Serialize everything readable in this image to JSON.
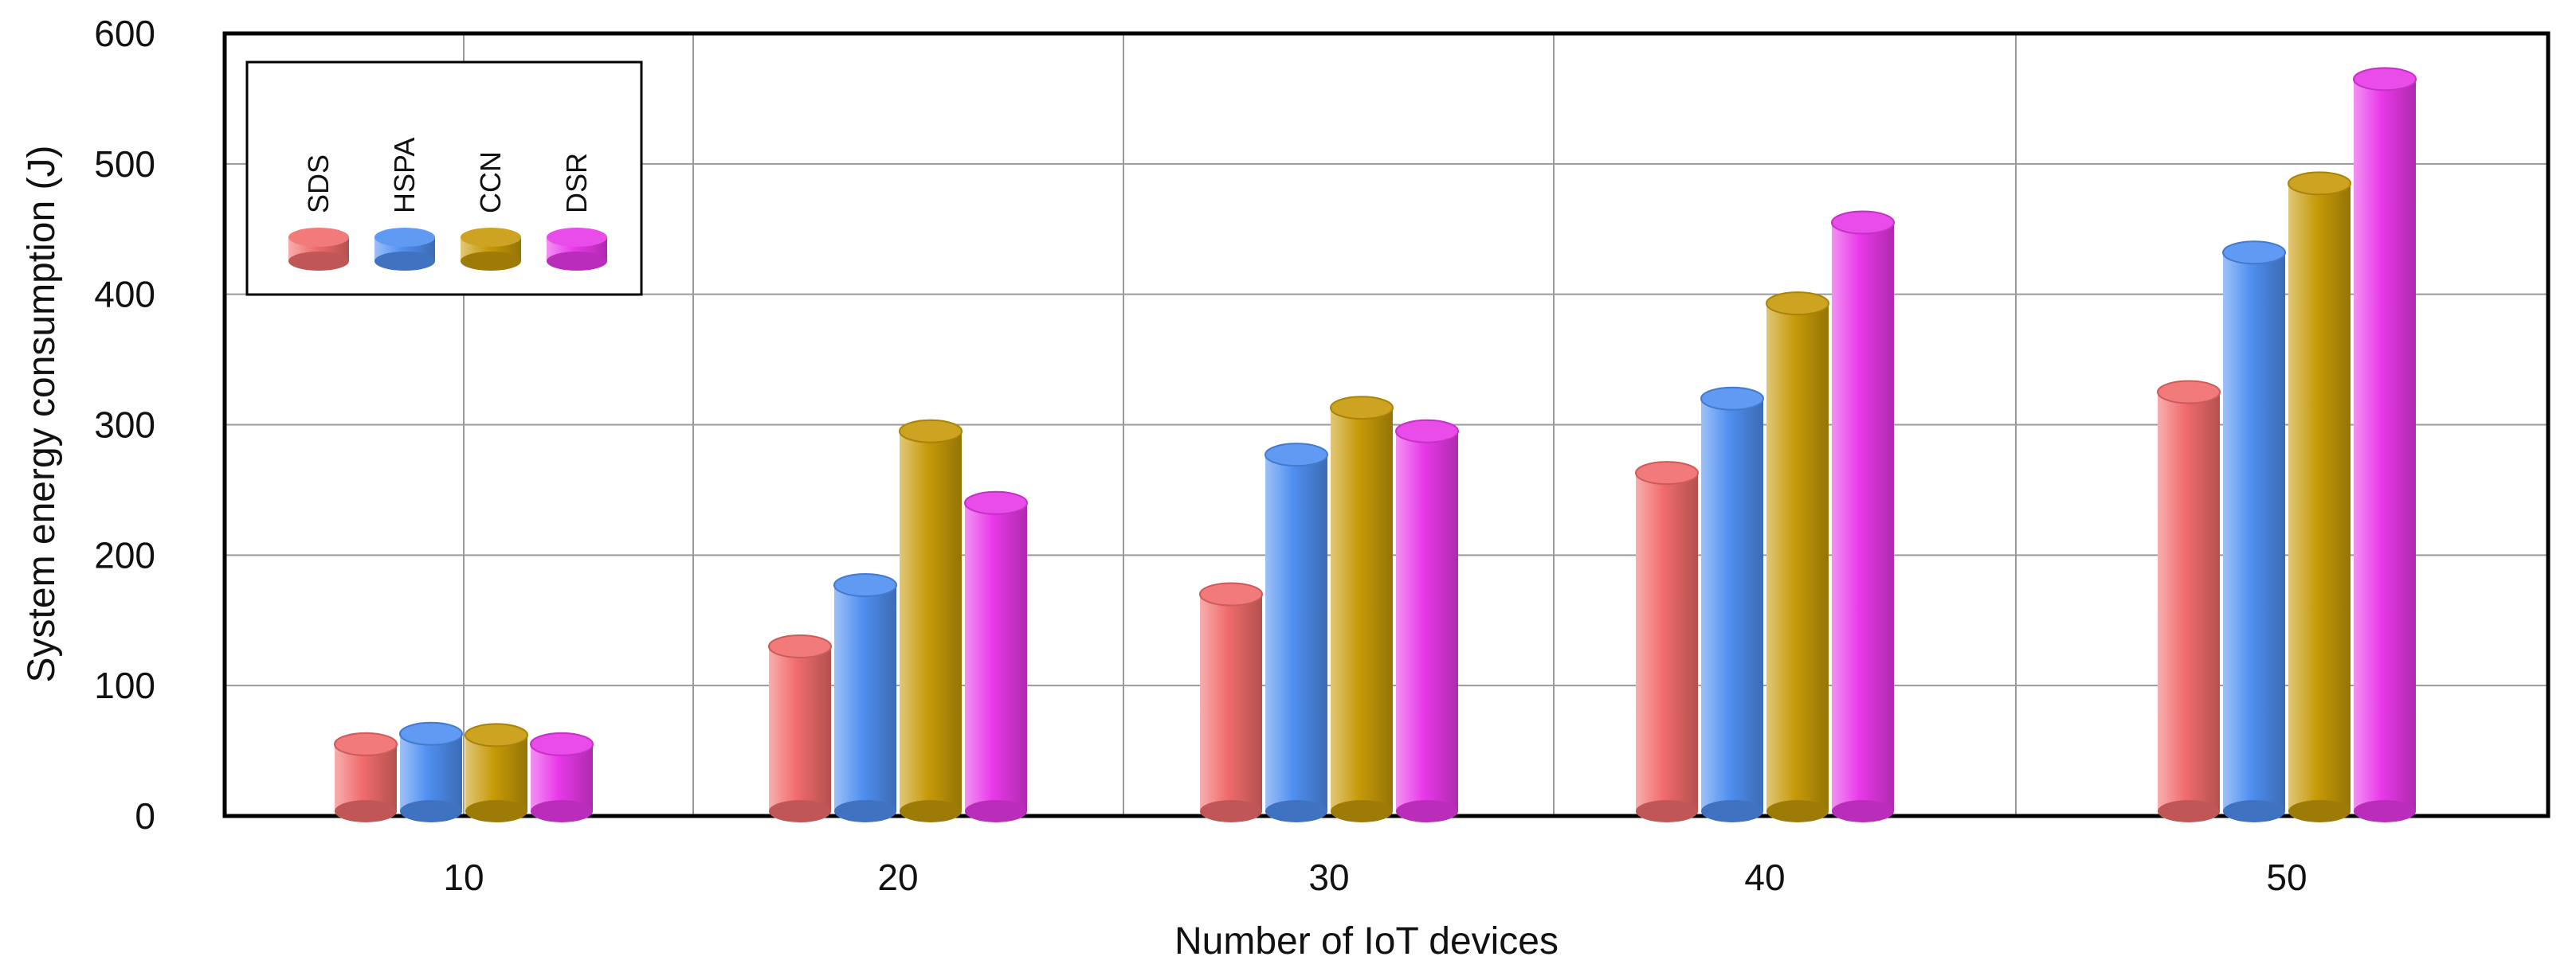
{
  "chart_data": {
    "type": "bar",
    "title": "",
    "xlabel": "Number of IoT devices",
    "ylabel": "System energy consumption (J)",
    "categories": [
      "10",
      "20",
      "30",
      "40",
      "50"
    ],
    "yticks": [
      "0",
      "100",
      "200",
      "300",
      "400",
      "500",
      "600"
    ],
    "ylim": [
      0,
      600
    ],
    "grid": true,
    "legend_position": "top-left",
    "series": [
      {
        "name": "SDS",
        "color": "#f06b6b",
        "values": [
          55,
          130,
          170,
          263,
          325
        ]
      },
      {
        "name": "HSPA",
        "color": "#4f8ff0",
        "values": [
          63,
          177,
          277,
          320,
          432
        ]
      },
      {
        "name": "CCN",
        "color": "#c69a08",
        "values": [
          62,
          295,
          313,
          393,
          485
        ]
      },
      {
        "name": "DSR",
        "color": "#e838e8",
        "values": [
          55,
          240,
          295,
          455,
          565
        ]
      }
    ]
  }
}
